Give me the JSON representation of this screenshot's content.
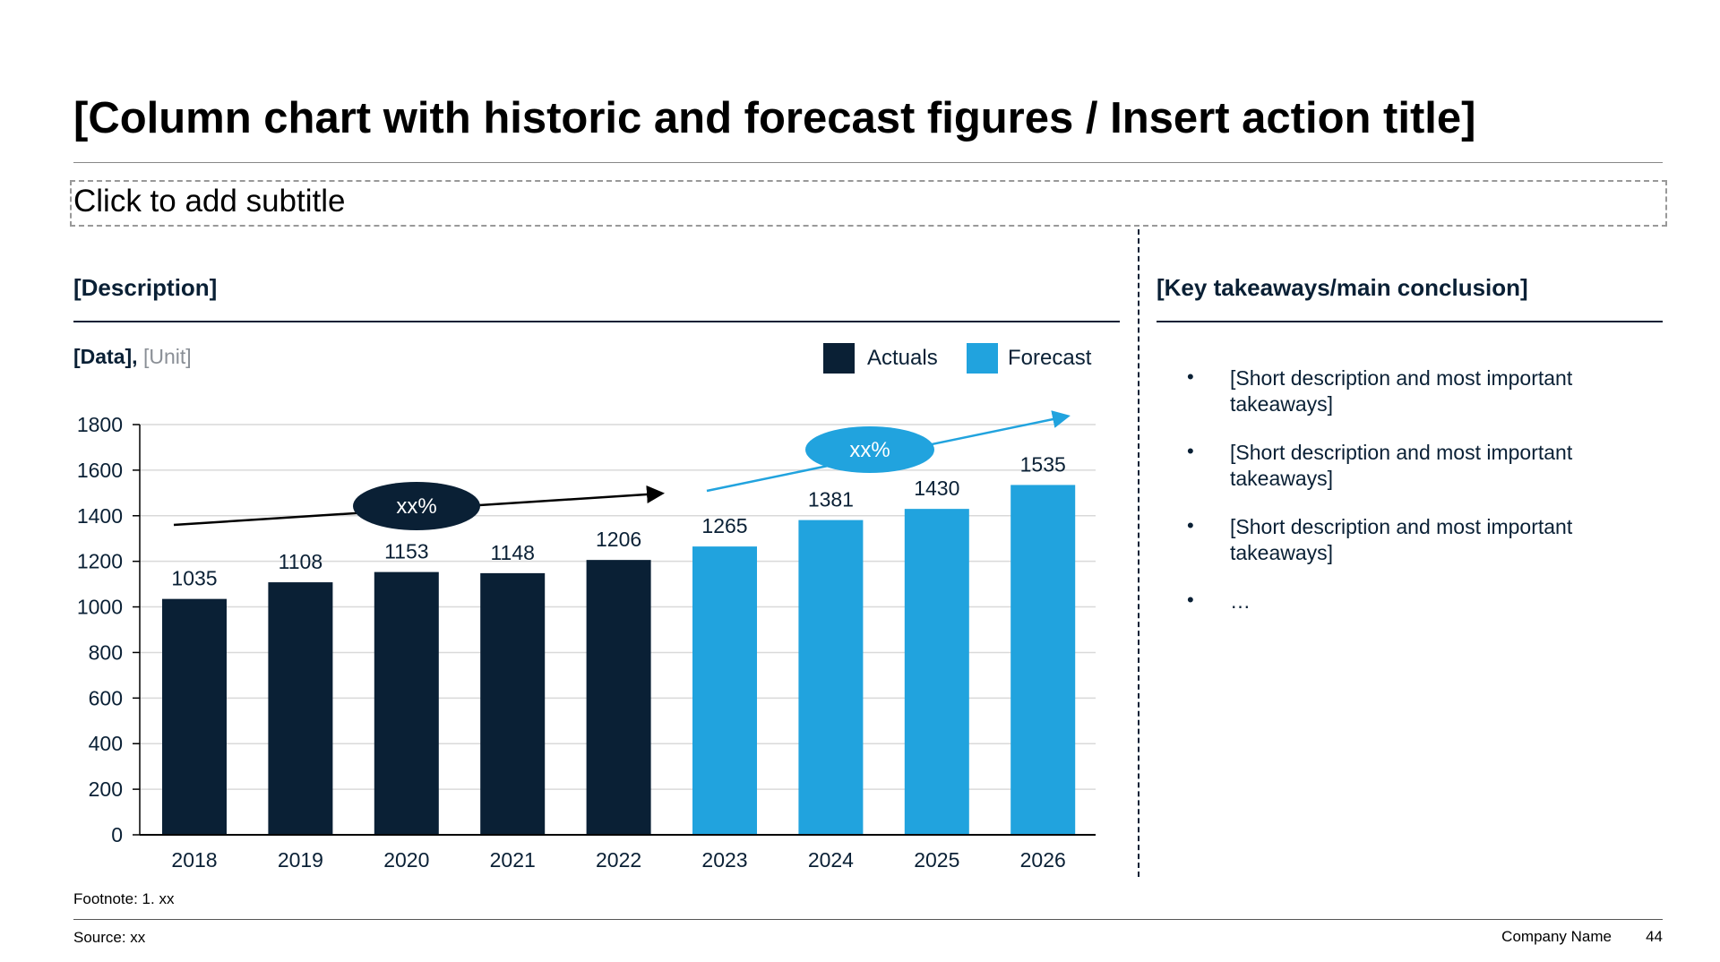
{
  "title": "[Column chart with historic and forecast figures / Insert action title]",
  "subtitle": "Click to add subtitle",
  "left": {
    "heading": "[Description]",
    "data_label": "[Data],",
    "unit_label": "[Unit]"
  },
  "right": {
    "heading": "[Key takeaways/main conclusion]",
    "bullets": [
      "[Short description and most important takeaways]",
      "[Short description and most important takeaways]",
      "[Short description and most important takeaways]",
      "…"
    ]
  },
  "footer": {
    "footnote": "Footnote: 1. xx",
    "source": "Source: xx",
    "company": "Company Name",
    "page": "44"
  },
  "colors": {
    "actuals": "#0a2035",
    "forecast": "#21a3de",
    "text": "#0a2035"
  },
  "chart_data": {
    "type": "bar",
    "categories": [
      "2018",
      "2019",
      "2020",
      "2021",
      "2022",
      "2023",
      "2024",
      "2025",
      "2026"
    ],
    "values": [
      1035,
      1108,
      1153,
      1148,
      1206,
      1265,
      1381,
      1430,
      1535
    ],
    "series_type": [
      "Actuals",
      "Actuals",
      "Actuals",
      "Actuals",
      "Actuals",
      "Forecast",
      "Forecast",
      "Forecast",
      "Forecast"
    ],
    "legend": [
      {
        "name": "Actuals",
        "color": "#0a2035"
      },
      {
        "name": "Forecast",
        "color": "#21a3de"
      }
    ],
    "legend_position": "top-right",
    "ylim": [
      0,
      1800
    ],
    "yticks": [
      "0",
      "200",
      "400",
      "600",
      "800",
      "1000",
      "1200",
      "1400",
      "1600",
      "1800"
    ],
    "grid": true,
    "annotations": [
      {
        "label": "xx%",
        "applies_to": "Actuals"
      },
      {
        "label": "xx%",
        "applies_to": "Forecast"
      }
    ]
  }
}
